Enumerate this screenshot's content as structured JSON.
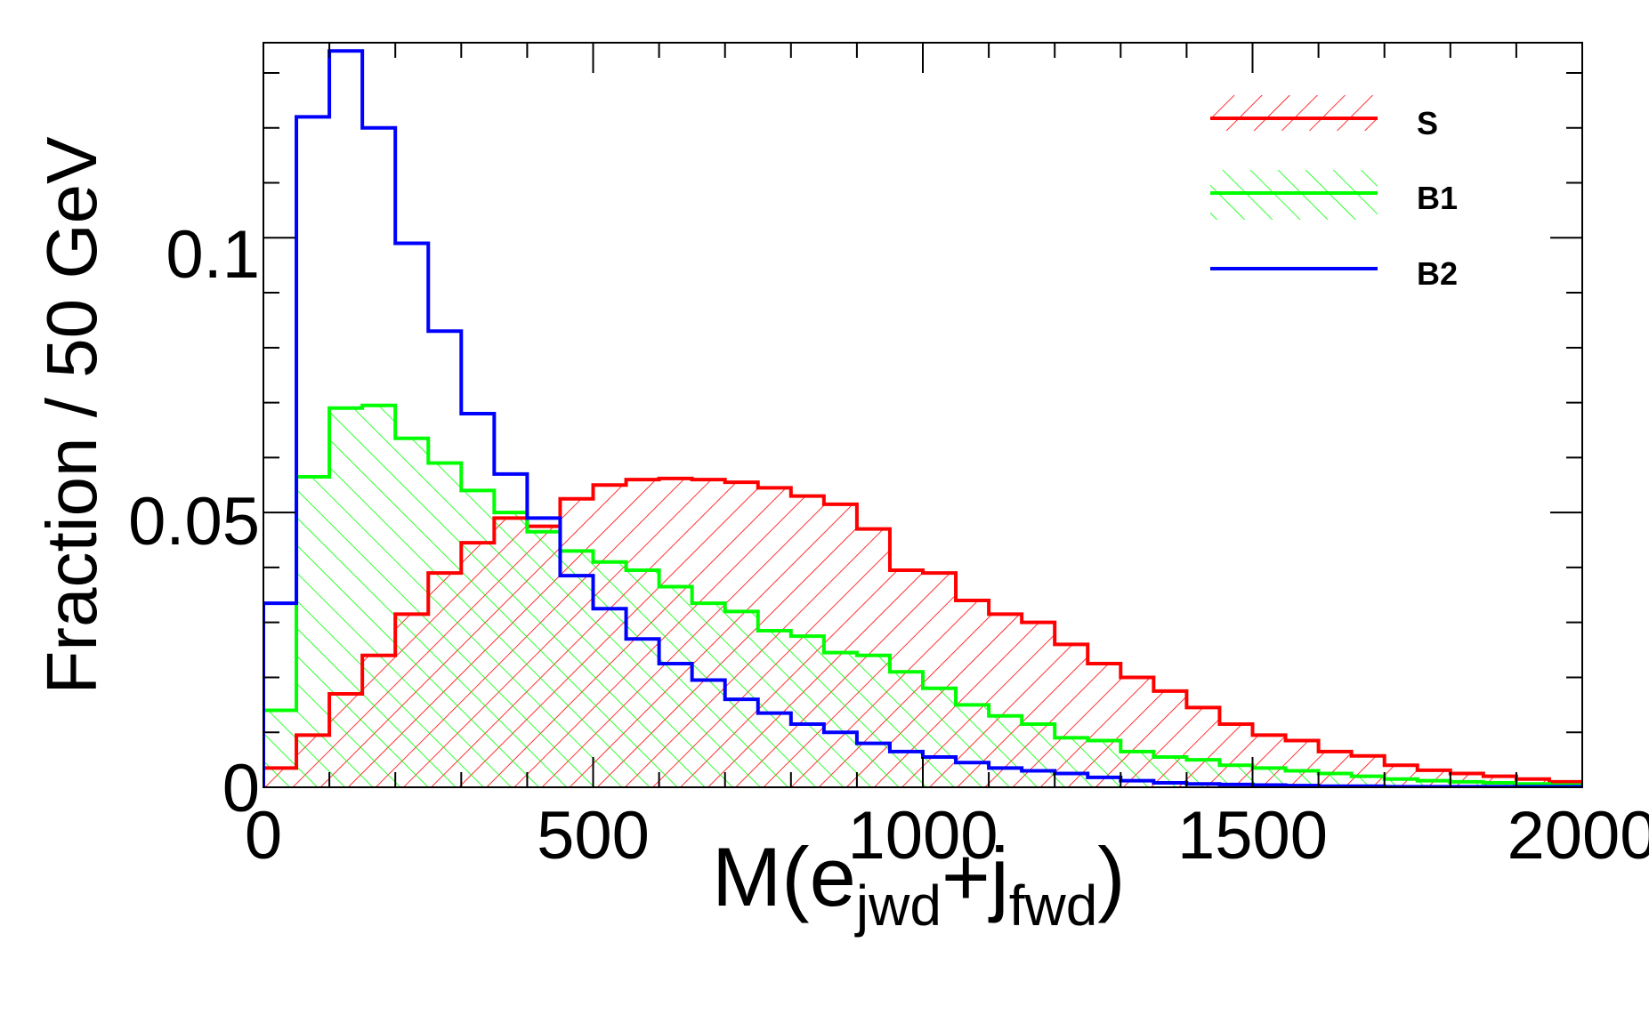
{
  "chart_data": {
    "type": "histogram",
    "x_axis": {
      "label_main": "M(e",
      "label_sub1": "jwd",
      "label_plus": "+j",
      "label_sub2": "fwd",
      "label_close": ")",
      "range": [
        0,
        2000
      ],
      "ticks": [
        "0",
        "500",
        "1000",
        "1500",
        "2000"
      ]
    },
    "y_axis": {
      "label": "Fraction / 50 GeV",
      "range": [
        0,
        0.1355
      ],
      "ticks": [
        "0",
        "0.05",
        "0.1"
      ]
    },
    "bin_width": 50,
    "colors": {
      "S": "#ff0000",
      "B1": "#00ff00",
      "B2": "#0000ff",
      "axis": "#000000"
    },
    "legend": {
      "position": "top-right",
      "entries": [
        "S",
        "B1",
        "B2"
      ]
    },
    "series": [
      {
        "name": "S",
        "hatch": "backslash",
        "values": [
          0.0035,
          0.0095,
          0.017,
          0.024,
          0.0315,
          0.039,
          0.0445,
          0.049,
          0.0475,
          0.0525,
          0.055,
          0.056,
          0.0562,
          0.056,
          0.0555,
          0.0545,
          0.053,
          0.0515,
          0.047,
          0.0395,
          0.039,
          0.034,
          0.0315,
          0.03,
          0.026,
          0.0225,
          0.02,
          0.0175,
          0.0145,
          0.0115,
          0.0095,
          0.0085,
          0.0065,
          0.0057,
          0.004,
          0.0031,
          0.0025,
          0.002,
          0.0015,
          0.001
        ]
      },
      {
        "name": "B1",
        "hatch": "slash",
        "values": [
          0.014,
          0.0565,
          0.069,
          0.0695,
          0.0635,
          0.059,
          0.054,
          0.05,
          0.0465,
          0.043,
          0.041,
          0.0395,
          0.0365,
          0.0335,
          0.032,
          0.0285,
          0.0275,
          0.0245,
          0.024,
          0.021,
          0.018,
          0.015,
          0.013,
          0.0115,
          0.009,
          0.0085,
          0.0065,
          0.0055,
          0.005,
          0.004,
          0.0035,
          0.003,
          0.0025,
          0.002,
          0.0015,
          0.0012,
          0.001,
          0.0008,
          0.0006,
          0.0004
        ]
      },
      {
        "name": "B2",
        "hatch": "none",
        "values": [
          0.0335,
          0.122,
          0.134,
          0.12,
          0.099,
          0.083,
          0.068,
          0.057,
          0.049,
          0.0385,
          0.0325,
          0.027,
          0.0225,
          0.0195,
          0.016,
          0.0135,
          0.0115,
          0.01,
          0.008,
          0.0065,
          0.0055,
          0.0045,
          0.0035,
          0.003,
          0.0025,
          0.0018,
          0.0012,
          0.0008,
          0.0006,
          0.0005,
          0.0004,
          0.0003,
          0.0002,
          0.0002,
          0.0001,
          0.0001,
          0.0001,
          0.0001,
          0.0001,
          0.0001
        ]
      }
    ]
  }
}
